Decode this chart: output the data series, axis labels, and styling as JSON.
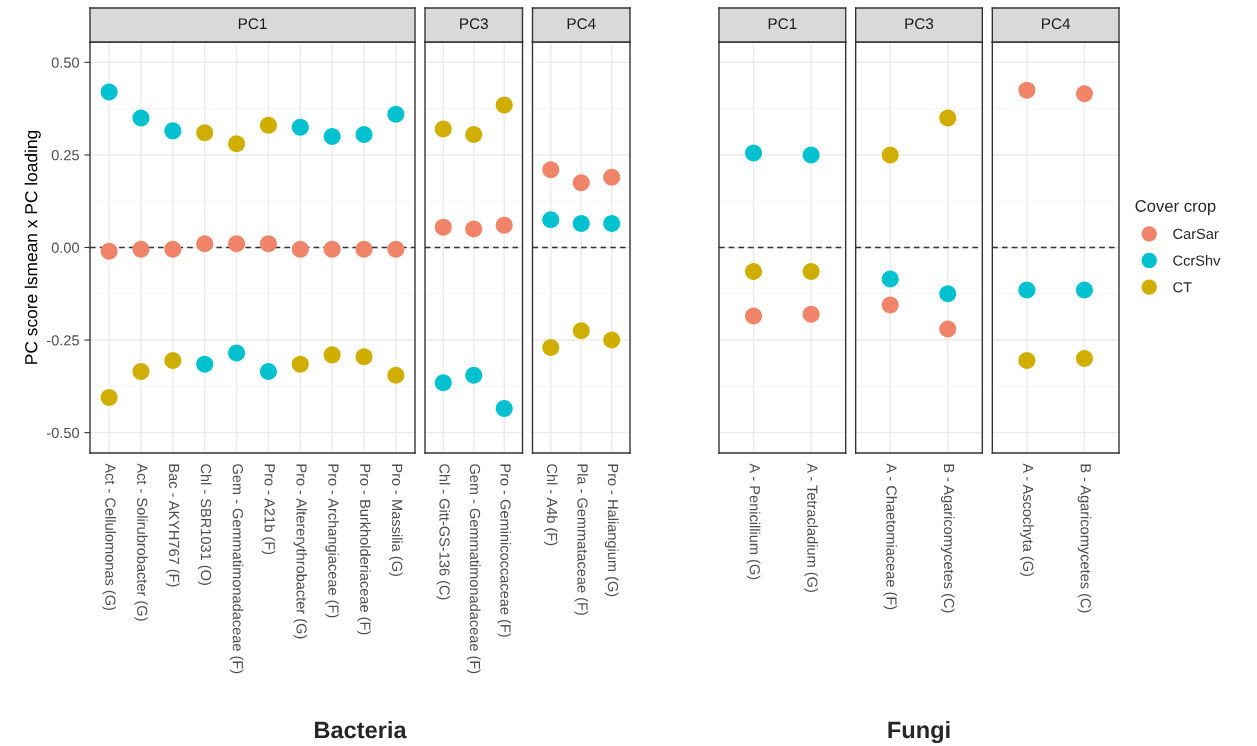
{
  "chart_data": [
    {
      "type": "scatter",
      "title": "PC1",
      "ylabel": "PC score lsmean x PC loading",
      "xlabel": "Bacteria",
      "categories": [
        "Act - Cellulomonas (G)",
        "Act - Solirubrobacter (G)",
        "Bac - AKYH767 (F)",
        "Chl - SBR1031 (O)",
        "Gem - Gemmatimonadaceae (F)",
        "Pro - A21b (F)",
        "Pro - Altererythrobacter (G)",
        "Pro - Archangiaceae (F)",
        "Pro - Burkholderiaceae (F)",
        "Pro - Massilia (G)"
      ],
      "series": [
        {
          "name": "CarSar",
          "color": "#f08468",
          "values": [
            -0.01,
            -0.005,
            -0.005,
            0.01,
            0.01,
            0.01,
            -0.005,
            -0.005,
            -0.005,
            -0.005
          ]
        },
        {
          "name": "CcrShv",
          "color": "#00c1cf",
          "values": [
            0.42,
            0.35,
            0.315,
            -0.315,
            -0.285,
            -0.335,
            0.325,
            0.3,
            0.305,
            0.36
          ]
        },
        {
          "name": "CT",
          "color": "#cfae00",
          "values": [
            -0.405,
            -0.335,
            -0.305,
            0.31,
            0.28,
            0.33,
            -0.315,
            -0.29,
            -0.295,
            -0.345
          ]
        }
      ],
      "ylim": [
        -0.555,
        0.555
      ],
      "yticks": [
        {
          "value": -0.5,
          "label": "-0.50"
        },
        {
          "value": -0.25,
          "label": "-0.25"
        },
        {
          "value": 0,
          "label": "0.00"
        },
        {
          "value": 0.25,
          "label": "0.25"
        },
        {
          "value": 0.5,
          "label": "0.50"
        }
      ],
      "grid": true,
      "marker": "circle",
      "legend": "right",
      "legend_title": "Cover crop",
      "ref_lines": [
        {
          "axis": "y",
          "value": 0,
          "line_style": "dashed",
          "color": "#333333"
        }
      ]
    },
    {
      "type": "scatter",
      "title": "PC3",
      "categories": [
        "Chl - Gitt-GS-136 (C)",
        "Gem - Gemmatimonadaceae (F)",
        "Pro - Geminicoccaceae (F)"
      ],
      "series": [
        {
          "color": "#f08468",
          "values": [
            0.055,
            0.05,
            0.06
          ]
        },
        {
          "color": "#00c1cf",
          "values": [
            -0.365,
            -0.345,
            -0.435
          ]
        },
        {
          "color": "#cfae00",
          "values": [
            0.32,
            0.305,
            0.385
          ]
        }
      ],
      "ylim": [
        -0.555,
        0.555
      ],
      "yticks": [
        {
          "value": -0.5,
          "label": null
        },
        {
          "value": -0.25,
          "label": null
        },
        {
          "value": 0,
          "label": null
        },
        {
          "value": 0.25,
          "label": null
        },
        {
          "value": 0.5,
          "label": null
        }
      ],
      "tick_labels": "x",
      "grid": true,
      "marker": "circle",
      "ref_lines": [
        {
          "axis": "y",
          "value": 0,
          "line_style": "dashed",
          "color": "#333333"
        }
      ]
    },
    {
      "type": "scatter",
      "title": "PC4",
      "categories": [
        "Chl - A4b (F)",
        "Pla - Gemmataceae (F)",
        "Pro - Haliangium (G)"
      ],
      "series": [
        {
          "color": "#f08468",
          "values": [
            0.21,
            0.175,
            0.19
          ]
        },
        {
          "color": "#00c1cf",
          "values": [
            0.075,
            0.065,
            0.065
          ]
        },
        {
          "color": "#cfae00",
          "values": [
            -0.27,
            -0.225,
            -0.25
          ]
        }
      ],
      "ylim": [
        -0.555,
        0.555
      ],
      "yticks": [
        {
          "value": -0.5,
          "label": null
        },
        {
          "value": -0.25,
          "label": null
        },
        {
          "value": 0,
          "label": null
        },
        {
          "value": 0.25,
          "label": null
        },
        {
          "value": 0.5,
          "label": null
        }
      ],
      "tick_labels": "x",
      "grid": true,
      "marker": "circle",
      "ref_lines": [
        {
          "axis": "y",
          "value": 0,
          "line_style": "dashed",
          "color": "#333333"
        }
      ]
    },
    {
      "type": "scatter",
      "title": "PC1",
      "xlabel": "Fungi",
      "categories": [
        "A - Penicillium (G)",
        "A - Tetracladium (G)"
      ],
      "series": [
        {
          "color": "#f08468",
          "values": [
            -0.185,
            -0.18
          ]
        },
        {
          "color": "#00c1cf",
          "values": [
            0.255,
            0.25
          ]
        },
        {
          "color": "#cfae00",
          "values": [
            -0.065,
            -0.065
          ]
        }
      ],
      "ylim": [
        -0.555,
        0.555
      ],
      "yticks": [
        {
          "value": -0.5,
          "label": null
        },
        {
          "value": -0.25,
          "label": null
        },
        {
          "value": 0,
          "label": null
        },
        {
          "value": 0.25,
          "label": null
        },
        {
          "value": 0.5,
          "label": null
        }
      ],
      "tick_labels": "x",
      "grid": true,
      "marker": "circle",
      "ref_lines": [
        {
          "axis": "y",
          "value": 0,
          "line_style": "dashed",
          "color": "#333333"
        }
      ]
    },
    {
      "type": "scatter",
      "title": "PC3",
      "categories": [
        "A - Chaetomiaceae (F)",
        "B - Agaricomycetes (C)"
      ],
      "series": [
        {
          "color": "#f08468",
          "values": [
            -0.155,
            -0.22
          ]
        },
        {
          "color": "#00c1cf",
          "values": [
            -0.085,
            -0.125
          ]
        },
        {
          "color": "#cfae00",
          "values": [
            0.25,
            0.35
          ]
        }
      ],
      "ylim": [
        -0.555,
        0.555
      ],
      "yticks": [
        {
          "value": -0.5,
          "label": null
        },
        {
          "value": -0.25,
          "label": null
        },
        {
          "value": 0,
          "label": null
        },
        {
          "value": 0.25,
          "label": null
        },
        {
          "value": 0.5,
          "label": null
        }
      ],
      "tick_labels": "x",
      "grid": true,
      "marker": "circle",
      "ref_lines": [
        {
          "axis": "y",
          "value": 0,
          "line_style": "dashed",
          "color": "#333333"
        }
      ]
    },
    {
      "type": "scatter",
      "title": "PC4",
      "categories": [
        "A - Ascochyta (G)",
        "B - Agaricomycetes (C)"
      ],
      "series": [
        {
          "color": "#f08468",
          "values": [
            0.425,
            0.415
          ]
        },
        {
          "color": "#00c1cf",
          "values": [
            -0.115,
            -0.115
          ]
        },
        {
          "color": "#cfae00",
          "values": [
            -0.305,
            -0.3
          ]
        }
      ],
      "ylim": [
        -0.555,
        0.555
      ],
      "yticks": [
        {
          "value": -0.5,
          "label": null
        },
        {
          "value": -0.25,
          "label": null
        },
        {
          "value": 0,
          "label": null
        },
        {
          "value": 0.25,
          "label": null
        },
        {
          "value": 0.5,
          "label": null
        }
      ],
      "tick_labels": "x",
      "grid": true,
      "marker": "circle",
      "ref_lines": [
        {
          "axis": "y",
          "value": 0,
          "line_style": "dashed",
          "color": "#333333"
        }
      ]
    }
  ]
}
